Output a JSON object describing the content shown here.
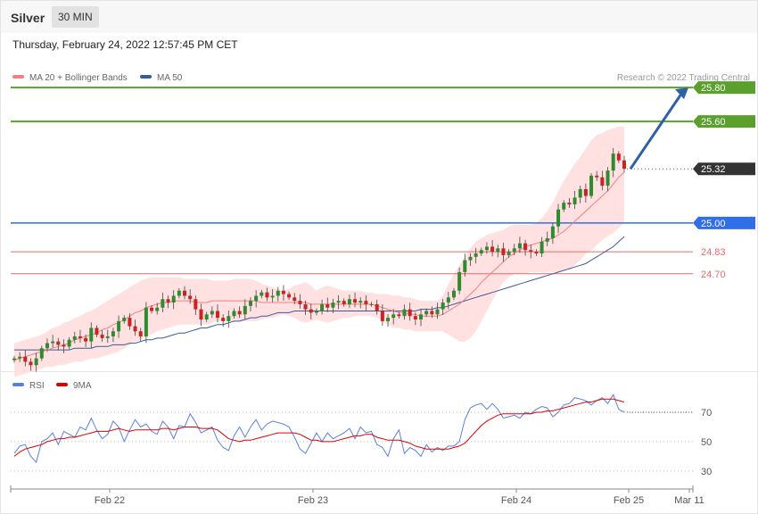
{
  "header": {
    "symbol": "Silver",
    "timeframe": "30 MIN",
    "datetime": "Thursday, February 24, 2022 12:57:45 PM CET",
    "credit": "Research © 2022 Trading Central"
  },
  "colors": {
    "candle_up": "#2e8b2e",
    "candle_down": "#cc2222",
    "bollinger_fill": "#ffdede",
    "ma20": "#f08080",
    "ma50": "#3a5a9c",
    "resistance": "#5aa02c",
    "pivot": "#2f6fe8",
    "support": "#e86a6a",
    "current": "#333333",
    "arrow": "#2f5fa8",
    "rsi": "#5b7fe0",
    "rsi_ma": "#e00000"
  },
  "chart_data": [
    {
      "type": "candlestick",
      "legend": [
        {
          "name": "MA 20 + Bollinger Bands",
          "color": "#f08080"
        },
        {
          "name": "MA 50",
          "color": "#3a5a9c"
        }
      ],
      "ylim": [
        24.14,
        25.88
      ],
      "x_ticks": [
        "Feb 22",
        "Feb 23",
        "Feb 24",
        "Feb 25",
        "Mar 11"
      ],
      "levels": [
        {
          "label": "25.80",
          "value": 25.8,
          "kind": "resistance"
        },
        {
          "label": "25.60",
          "value": 25.6,
          "kind": "resistance"
        },
        {
          "label": "25.32",
          "value": 25.32,
          "kind": "current"
        },
        {
          "label": "25.00",
          "value": 25.0,
          "kind": "pivot"
        },
        {
          "label": "24.83",
          "value": 24.83,
          "kind": "support"
        },
        {
          "label": "24.70",
          "value": 24.7,
          "kind": "support"
        }
      ],
      "forecast_arrow": {
        "from": 25.32,
        "to": 25.8
      },
      "close": [
        24.2,
        24.21,
        24.18,
        24.16,
        24.2,
        24.26,
        24.29,
        24.3,
        24.28,
        24.27,
        24.31,
        24.33,
        24.32,
        24.3,
        24.38,
        24.34,
        24.32,
        24.33,
        24.36,
        24.42,
        24.44,
        24.39,
        24.36,
        24.33,
        24.5,
        24.48,
        24.5,
        24.55,
        24.53,
        24.57,
        24.6,
        24.57,
        24.55,
        24.49,
        24.43,
        24.46,
        24.48,
        24.44,
        24.42,
        24.45,
        24.48,
        24.46,
        24.51,
        24.54,
        24.57,
        24.59,
        24.56,
        24.57,
        24.6,
        24.58,
        24.56,
        24.54,
        24.52,
        24.49,
        24.47,
        24.48,
        24.52,
        24.5,
        24.53,
        24.54,
        24.52,
        24.55,
        24.53,
        24.54,
        24.52,
        24.52,
        24.48,
        24.42,
        24.44,
        24.46,
        24.45,
        24.49,
        24.45,
        24.43,
        24.46,
        24.48,
        24.46,
        24.49,
        24.53,
        24.56,
        24.6,
        24.71,
        24.78,
        24.8,
        24.82,
        24.84,
        24.86,
        24.83,
        24.85,
        24.81,
        24.83,
        24.85,
        24.88,
        24.84,
        24.83,
        24.82,
        24.89,
        24.91,
        24.98,
        25.08,
        25.12,
        25.11,
        25.15,
        25.2,
        25.16,
        25.28,
        25.27,
        25.22,
        25.31,
        25.41,
        25.37,
        25.32
      ],
      "bb_upper": [
        24.29,
        24.3,
        24.31,
        24.32,
        24.33,
        24.34,
        24.36,
        24.38,
        24.39,
        24.41,
        24.42,
        24.44,
        24.45,
        24.47,
        24.48,
        24.5,
        24.52,
        24.54,
        24.56,
        24.58,
        24.6,
        24.62,
        24.64,
        24.66,
        24.67,
        24.68,
        24.68,
        24.68,
        24.68,
        24.68,
        24.68,
        24.67,
        24.67,
        24.67,
        24.67,
        24.67,
        24.66,
        24.66,
        24.66,
        24.66,
        24.67,
        24.67,
        24.67,
        24.67,
        24.66,
        24.64,
        24.63,
        24.62,
        24.61,
        24.6,
        24.61,
        24.63,
        24.64,
        24.65,
        24.63,
        24.6,
        24.62,
        24.63,
        24.62,
        24.61,
        24.6,
        24.6,
        24.6,
        24.6,
        24.59,
        24.59,
        24.58,
        24.58,
        24.58,
        24.57,
        24.57,
        24.56,
        24.56,
        24.55,
        24.54,
        24.54,
        24.54,
        24.54,
        24.57,
        24.64,
        24.7,
        24.75,
        24.8,
        24.85,
        24.89,
        24.91,
        24.93,
        24.94,
        24.95,
        24.96,
        24.98,
        24.99,
        24.99,
        24.99,
        24.99,
        25.0,
        25.03,
        25.07,
        25.12,
        25.19,
        25.25,
        25.3,
        25.35,
        25.39,
        25.44,
        25.49,
        25.52,
        25.53,
        25.55,
        25.56,
        25.57,
        25.57
      ],
      "bb_lower": [
        24.09,
        24.1,
        24.11,
        24.12,
        24.13,
        24.14,
        24.15,
        24.15,
        24.16,
        24.16,
        24.17,
        24.18,
        24.18,
        24.19,
        24.2,
        24.2,
        24.21,
        24.22,
        24.23,
        24.24,
        24.26,
        24.28,
        24.3,
        24.31,
        24.33,
        24.34,
        24.36,
        24.37,
        24.38,
        24.39,
        24.4,
        24.4,
        24.4,
        24.4,
        24.4,
        24.4,
        24.41,
        24.42,
        24.42,
        24.42,
        24.42,
        24.42,
        24.42,
        24.42,
        24.42,
        24.43,
        24.44,
        24.44,
        24.45,
        24.46,
        24.45,
        24.44,
        24.42,
        24.41,
        24.42,
        24.43,
        24.42,
        24.41,
        24.42,
        24.43,
        24.44,
        24.44,
        24.45,
        24.45,
        24.45,
        24.45,
        24.44,
        24.42,
        24.4,
        24.38,
        24.38,
        24.37,
        24.37,
        24.36,
        24.36,
        24.36,
        24.36,
        24.36,
        24.36,
        24.34,
        24.32,
        24.3,
        24.3,
        24.32,
        24.36,
        24.42,
        24.48,
        24.54,
        24.6,
        24.65,
        24.68,
        24.7,
        24.7,
        24.7,
        24.71,
        24.71,
        24.71,
        24.71,
        24.71,
        24.71,
        24.72,
        24.73,
        24.75,
        24.78,
        24.82,
        24.84,
        24.87,
        24.9,
        24.92,
        24.94,
        24.97,
        25.0
      ],
      "ma20": [
        24.19,
        24.2,
        24.21,
        24.22,
        24.23,
        24.24,
        24.25,
        24.26,
        24.27,
        24.28,
        24.29,
        24.31,
        24.32,
        24.33,
        24.34,
        24.35,
        24.37,
        24.38,
        24.4,
        24.41,
        24.43,
        24.45,
        24.47,
        24.48,
        24.5,
        24.51,
        24.52,
        24.53,
        24.53,
        24.54,
        24.54,
        24.54,
        24.54,
        24.53,
        24.53,
        24.53,
        24.54,
        24.54,
        24.54,
        24.54,
        24.54,
        24.54,
        24.54,
        24.54,
        24.54,
        24.53,
        24.53,
        24.53,
        24.53,
        24.53,
        24.53,
        24.53,
        24.53,
        24.53,
        24.52,
        24.52,
        24.52,
        24.52,
        24.52,
        24.52,
        24.52,
        24.52,
        24.52,
        24.52,
        24.52,
        24.52,
        24.51,
        24.5,
        24.49,
        24.48,
        24.47,
        24.47,
        24.46,
        24.46,
        24.45,
        24.45,
        24.45,
        24.45,
        24.46,
        24.48,
        24.5,
        24.52,
        24.55,
        24.58,
        24.61,
        24.65,
        24.68,
        24.71,
        24.74,
        24.77,
        24.8,
        24.82,
        24.84,
        24.86,
        24.87,
        24.88,
        24.89,
        24.9,
        24.91,
        24.93,
        24.95,
        24.98,
        25.01,
        25.04,
        25.07,
        25.1,
        25.13,
        25.16,
        25.19,
        25.23,
        25.27,
        25.3
      ],
      "ma50": [
        24.25,
        24.25,
        24.25,
        24.25,
        24.25,
        24.25,
        24.25,
        24.25,
        24.25,
        24.25,
        24.25,
        24.26,
        24.26,
        24.26,
        24.26,
        24.27,
        24.27,
        24.27,
        24.28,
        24.28,
        24.28,
        24.29,
        24.29,
        24.3,
        24.31,
        24.31,
        24.32,
        24.32,
        24.33,
        24.34,
        24.35,
        24.35,
        24.36,
        24.37,
        24.38,
        24.38,
        24.39,
        24.4,
        24.4,
        24.41,
        24.42,
        24.42,
        24.43,
        24.44,
        24.44,
        24.45,
        24.45,
        24.46,
        24.47,
        24.47,
        24.47,
        24.48,
        24.48,
        24.48,
        24.48,
        24.48,
        24.48,
        24.48,
        24.48,
        24.48,
        24.48,
        24.48,
        24.48,
        24.48,
        24.48,
        24.48,
        24.48,
        24.48,
        24.48,
        24.48,
        24.48,
        24.48,
        24.48,
        24.48,
        24.49,
        24.49,
        24.49,
        24.5,
        24.5,
        24.51,
        24.52,
        24.53,
        24.54,
        24.55,
        24.56,
        24.57,
        24.58,
        24.59,
        24.6,
        24.61,
        24.62,
        24.63,
        24.64,
        24.65,
        24.66,
        24.67,
        24.68,
        24.69,
        24.7,
        24.71,
        24.72,
        24.73,
        24.74,
        24.75,
        24.76,
        24.78,
        24.8,
        24.82,
        24.84,
        24.86,
        24.89,
        24.92
      ]
    },
    {
      "type": "line",
      "legend": [
        {
          "name": "RSI",
          "color": "#5b7fe0"
        },
        {
          "name": "9MA",
          "color": "#e00000"
        }
      ],
      "y_ticks": [
        30,
        50,
        70
      ],
      "ylim": [
        22,
        84
      ],
      "overbought": 70,
      "rsi": [
        42,
        47,
        48,
        40,
        36,
        50,
        52,
        56,
        48,
        57,
        55,
        53,
        60,
        58,
        66,
        58,
        52,
        55,
        64,
        60,
        50,
        58,
        65,
        60,
        62,
        57,
        55,
        64,
        60,
        52,
        61,
        60,
        69,
        63,
        56,
        58,
        60,
        51,
        46,
        44,
        54,
        60,
        53,
        60,
        65,
        58,
        62,
        64,
        63,
        62,
        60,
        53,
        45,
        42,
        49,
        56,
        50,
        56,
        52,
        54,
        56,
        59,
        52,
        60,
        56,
        57,
        48,
        46,
        40,
        52,
        58,
        42,
        46,
        44,
        40,
        48,
        43,
        46,
        44,
        47,
        47,
        50,
        65,
        73,
        75,
        76,
        72,
        76,
        72,
        66,
        67,
        68,
        66,
        70,
        69,
        72,
        74,
        73,
        67,
        70,
        75,
        76,
        80,
        79,
        78,
        75,
        78,
        80,
        76,
        82,
        72,
        70
      ],
      "rsi_ma": [
        40,
        43,
        45,
        46,
        47,
        48,
        50,
        51,
        52,
        52,
        53,
        53,
        54,
        55,
        56,
        57,
        57,
        57,
        58,
        59,
        58,
        57,
        58,
        58,
        58,
        58,
        58,
        59,
        59,
        58,
        59,
        60,
        60,
        60,
        59,
        59,
        59,
        58,
        55,
        52,
        51,
        50,
        51,
        51,
        52,
        53,
        54,
        55,
        56,
        56,
        56,
        56,
        55,
        53,
        51,
        51,
        50,
        50,
        50,
        51,
        52,
        53,
        54,
        54,
        55,
        55,
        53,
        52,
        51,
        51,
        51,
        50,
        49,
        47,
        46,
        45,
        45,
        45,
        45,
        45,
        46,
        47,
        49,
        53,
        57,
        61,
        64,
        66,
        68,
        69,
        69,
        69,
        69,
        69,
        69,
        70,
        70,
        71,
        71,
        72,
        73,
        74,
        75,
        76,
        77,
        77,
        78,
        79,
        79,
        79,
        78,
        77
      ]
    }
  ]
}
